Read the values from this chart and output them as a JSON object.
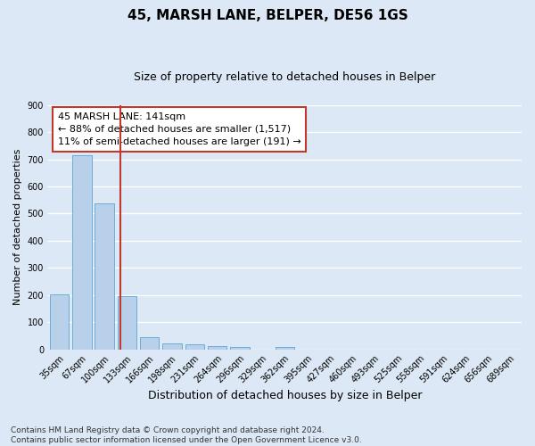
{
  "title": "45, MARSH LANE, BELPER, DE56 1GS",
  "subtitle": "Size of property relative to detached houses in Belper",
  "xlabel": "Distribution of detached houses by size in Belper",
  "ylabel": "Number of detached properties",
  "bar_labels": [
    "35sqm",
    "67sqm",
    "100sqm",
    "133sqm",
    "166sqm",
    "198sqm",
    "231sqm",
    "264sqm",
    "296sqm",
    "329sqm",
    "362sqm",
    "395sqm",
    "427sqm",
    "460sqm",
    "493sqm",
    "525sqm",
    "558sqm",
    "591sqm",
    "624sqm",
    "656sqm",
    "689sqm"
  ],
  "bar_values": [
    202,
    714,
    537,
    195,
    46,
    22,
    18,
    12,
    9,
    0,
    8,
    0,
    0,
    0,
    0,
    0,
    0,
    0,
    0,
    0,
    0
  ],
  "bar_color": "#b8d0ea",
  "bar_edge_color": "#6aaed6",
  "bg_color": "#dce8f5",
  "grid_color": "#ffffff",
  "vline_color": "#c0392b",
  "annotation_text": "45 MARSH LANE: 141sqm\n← 88% of detached houses are smaller (1,517)\n11% of semi-detached houses are larger (191) →",
  "annotation_box_color": "#ffffff",
  "annotation_box_edge_color": "#c0392b",
  "ylim": [
    0,
    900
  ],
  "yticks": [
    0,
    100,
    200,
    300,
    400,
    500,
    600,
    700,
    800,
    900
  ],
  "footnote": "Contains HM Land Registry data © Crown copyright and database right 2024.\nContains public sector information licensed under the Open Government Licence v3.0.",
  "title_fontsize": 11,
  "subtitle_fontsize": 9,
  "xlabel_fontsize": 9,
  "ylabel_fontsize": 8,
  "tick_fontsize": 7,
  "annotation_fontsize": 8,
  "footnote_fontsize": 6.5
}
